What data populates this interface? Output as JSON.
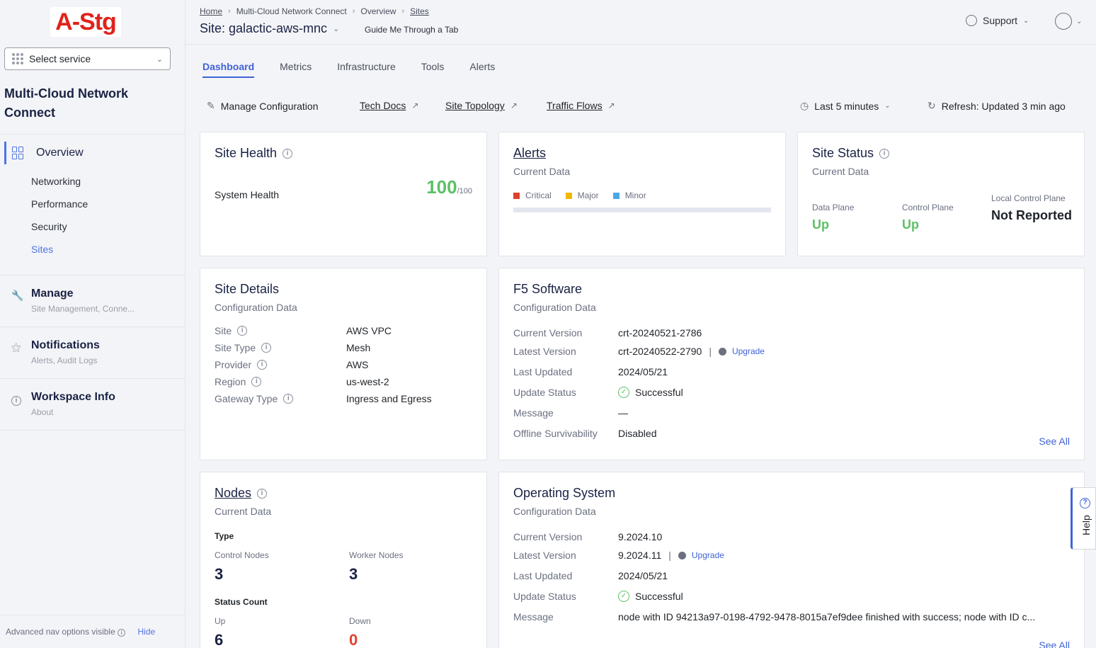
{
  "sidebar": {
    "logo": "A-Stg",
    "select_service": "Select service",
    "workspace_title": "Multi-Cloud Network Connect",
    "overview_label": "Overview",
    "sub_items": [
      "Networking",
      "Performance",
      "Security",
      "Sites"
    ],
    "groups": [
      {
        "title": "Manage",
        "subtitle": "Site Management, Conne..."
      },
      {
        "title": "Notifications",
        "subtitle": "Alerts, Audit Logs"
      },
      {
        "title": "Workspace Info",
        "subtitle": "About"
      }
    ],
    "advanced_text": "Advanced nav options visible",
    "hide_label": "Hide"
  },
  "header": {
    "breadcrumbs": [
      "Home",
      "Multi-Cloud Network Connect",
      "Overview",
      "Sites"
    ],
    "site_title": "Site: galactic-aws-mnc",
    "guide": "Guide Me Through a Tab",
    "support": "Support"
  },
  "tabs": [
    "Dashboard",
    "Metrics",
    "Infrastructure",
    "Tools",
    "Alerts"
  ],
  "actions": {
    "manage": "Manage Configuration",
    "tech_docs": "Tech Docs",
    "site_topology": "Site Topology",
    "traffic_flows": "Traffic Flows",
    "time_range": "Last 5 minutes",
    "refresh": "Refresh: Updated 3 min ago"
  },
  "site_health": {
    "title": "Site Health",
    "label": "System Health",
    "value": "100",
    "max": "/100"
  },
  "alerts": {
    "title": "Alerts",
    "subtitle": "Current Data",
    "legend": [
      {
        "label": "Critical",
        "color": "#e0412f"
      },
      {
        "label": "Major",
        "color": "#f2b705"
      },
      {
        "label": "Minor",
        "color": "#4aa8e8"
      }
    ]
  },
  "site_status": {
    "title": "Site Status",
    "subtitle": "Current Data",
    "data_plane_label": "Data Plane",
    "data_plane_value": "Up",
    "control_plane_label": "Control Plane",
    "control_plane_value": "Up",
    "local_cp_label": "Local Control Plane",
    "local_cp_value": "Not Reported"
  },
  "site_details": {
    "title": "Site Details",
    "subtitle": "Configuration Data",
    "rows": [
      {
        "k": "Site",
        "v": "AWS VPC"
      },
      {
        "k": "Site Type",
        "v": "Mesh"
      },
      {
        "k": "Provider",
        "v": "AWS"
      },
      {
        "k": "Region",
        "v": "us-west-2"
      },
      {
        "k": "Gateway Type",
        "v": "Ingress and Egress"
      }
    ]
  },
  "f5_software": {
    "title": "F5 Software",
    "subtitle": "Configuration Data",
    "current_version_label": "Current Version",
    "current_version": "crt-20240521-2786",
    "latest_version_label": "Latest Version",
    "latest_version": "crt-20240522-2790",
    "upgrade": "Upgrade",
    "last_updated_label": "Last Updated",
    "last_updated": "2024/05/21",
    "update_status_label": "Update Status",
    "update_status": "Successful",
    "message_label": "Message",
    "message": "—",
    "offline_label": "Offline Survivability",
    "offline": "Disabled",
    "see_all": "See All"
  },
  "nodes": {
    "title": "Nodes",
    "subtitle": "Current Data",
    "type_label": "Type",
    "control_label": "Control Nodes",
    "control_value": "3",
    "worker_label": "Worker Nodes",
    "worker_value": "3",
    "status_label": "Status Count",
    "up_label": "Up",
    "up_value": "6",
    "down_label": "Down",
    "down_value": "0"
  },
  "os": {
    "title": "Operating System",
    "subtitle": "Configuration Data",
    "current_version_label": "Current Version",
    "current_version": "9.2024.10",
    "latest_version_label": "Latest Version",
    "latest_version": "9.2024.11",
    "upgrade": "Upgrade",
    "last_updated_label": "Last Updated",
    "last_updated": "2024/05/21",
    "update_status_label": "Update Status",
    "update_status": "Successful",
    "message_label": "Message",
    "message": "node with ID 94213a97-0198-4792-9478-8015a7ef9dee finished with success; node with ID c...",
    "see_all": "See All"
  },
  "help": "Help"
}
